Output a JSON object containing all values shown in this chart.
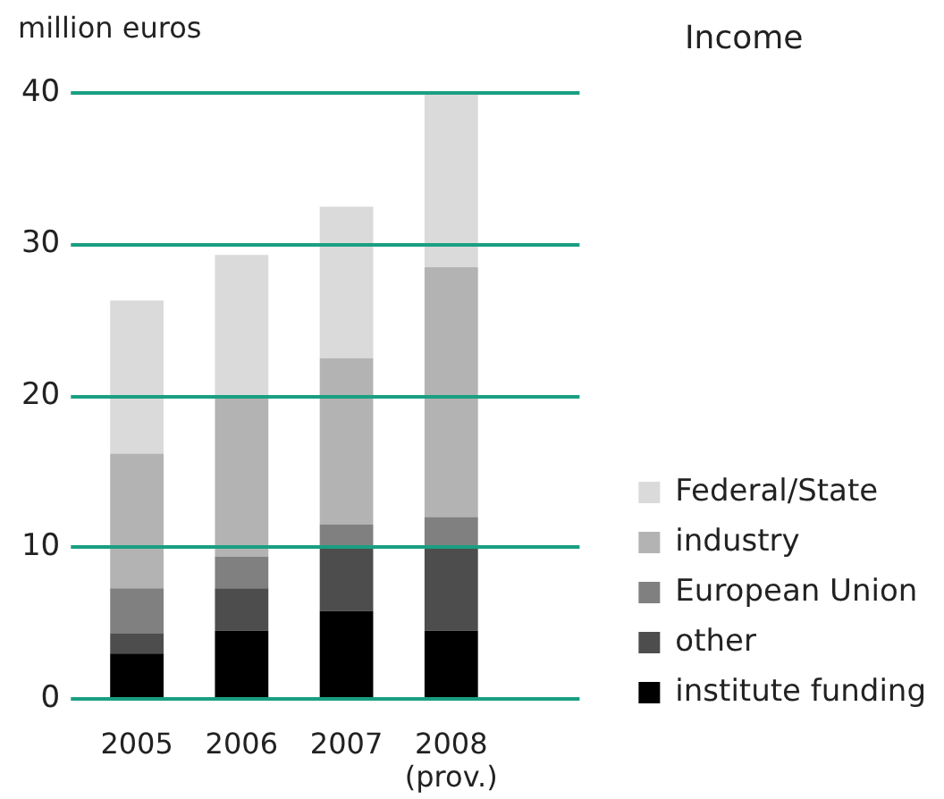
{
  "chart_data": {
    "type": "bar",
    "title": "Income",
    "ylabel": "million euros",
    "categories": [
      "2005",
      "2006",
      "2007",
      "2008\n(prov.)"
    ],
    "series": [
      {
        "name": "institute funding",
        "color": "#000000",
        "values": [
          3.0,
          4.5,
          5.8,
          4.5
        ]
      },
      {
        "name": "other",
        "color": "#4d4d4d",
        "values": [
          1.3,
          2.8,
          4.2,
          5.5
        ]
      },
      {
        "name": "European Union",
        "color": "#808080",
        "values": [
          3.0,
          2.1,
          1.5,
          2.0
        ]
      },
      {
        "name": "industry",
        "color": "#b3b3b3",
        "values": [
          8.9,
          10.6,
          11.0,
          16.5
        ]
      },
      {
        "name": "Federal/State",
        "color": "#dadada",
        "values": [
          10.1,
          9.3,
          10.0,
          11.5
        ]
      }
    ],
    "stacked": true,
    "ylim": [
      0,
      40
    ],
    "yticks": [
      0,
      10,
      20,
      30,
      40
    ],
    "grid": "y",
    "legend": "bottom right"
  }
}
